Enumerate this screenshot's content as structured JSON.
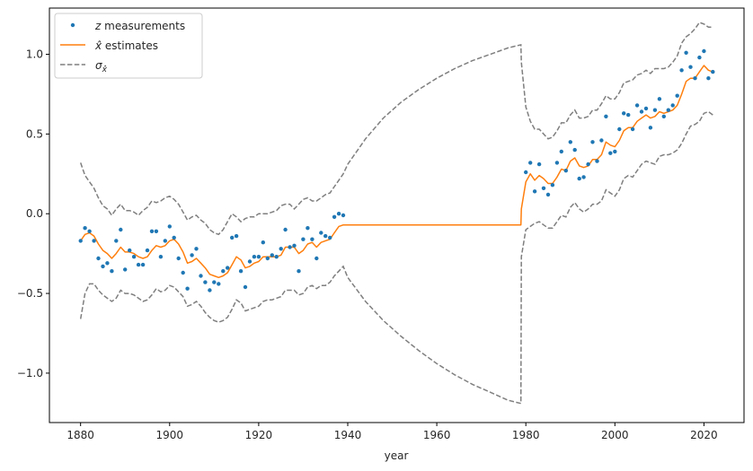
{
  "chart_data": {
    "type": "line",
    "xlabel": "year",
    "ylabel": "",
    "xlim": [
      1873,
      2029
    ],
    "ylim": [
      -1.31,
      1.29
    ],
    "xticks": [
      1880,
      1900,
      1920,
      1940,
      1960,
      1980,
      2000,
      2020
    ],
    "yticks": [
      -1.0,
      -0.5,
      0.0,
      0.5,
      1.0
    ],
    "xtick_labels": [
      "1880",
      "1900",
      "1920",
      "1940",
      "1960",
      "1980",
      "2000",
      "2020"
    ],
    "ytick_labels": [
      "−1.0",
      "−0.5",
      "0.0",
      "0.5",
      "1.0"
    ],
    "grid": false,
    "legend": {
      "placement": "top-left",
      "entries": [
        {
          "key": "measurements",
          "prefix": "z",
          "label": " measurements"
        },
        {
          "key": "estimates",
          "prefix": "x̂",
          "label": " estimates"
        },
        {
          "key": "sigma",
          "prefix": "σ",
          "sub": "x̂",
          "label": ""
        }
      ]
    },
    "colors": {
      "measurements": "#1f77b4",
      "estimates": "#ff7f0e",
      "sigma": "#7f7f7f"
    },
    "measurements": {
      "x": [
        1880,
        1881,
        1882,
        1883,
        1884,
        1885,
        1886,
        1887,
        1888,
        1889,
        1890,
        1891,
        1892,
        1893,
        1894,
        1895,
        1896,
        1897,
        1898,
        1899,
        1900,
        1901,
        1902,
        1903,
        1904,
        1905,
        1906,
        1907,
        1908,
        1909,
        1910,
        1911,
        1912,
        1913,
        1914,
        1915,
        1916,
        1917,
        1918,
        1919,
        1920,
        1921,
        1922,
        1923,
        1924,
        1925,
        1926,
        1927,
        1928,
        1929,
        1930,
        1931,
        1932,
        1933,
        1934,
        1935,
        1936,
        1937,
        1938,
        1939,
        1980,
        1981,
        1982,
        1983,
        1984,
        1985,
        1986,
        1987,
        1988,
        1989,
        1990,
        1991,
        1992,
        1993,
        1994,
        1995,
        1996,
        1997,
        1998,
        1999,
        2000,
        2001,
        2002,
        2003,
        2004,
        2005,
        2006,
        2007,
        2008,
        2009,
        2010,
        2011,
        2012,
        2013,
        2014,
        2015,
        2016,
        2017,
        2018,
        2019,
        2020,
        2021,
        2022
      ],
      "y": [
        -0.17,
        -0.09,
        -0.11,
        -0.17,
        -0.28,
        -0.33,
        -0.31,
        -0.36,
        -0.17,
        -0.1,
        -0.35,
        -0.23,
        -0.27,
        -0.32,
        -0.32,
        -0.23,
        -0.11,
        -0.11,
        -0.27,
        -0.17,
        -0.08,
        -0.15,
        -0.28,
        -0.37,
        -0.47,
        -0.26,
        -0.22,
        -0.39,
        -0.43,
        -0.48,
        -0.43,
        -0.44,
        -0.36,
        -0.34,
        -0.15,
        -0.14,
        -0.36,
        -0.46,
        -0.3,
        -0.27,
        -0.27,
        -0.18,
        -0.28,
        -0.26,
        -0.27,
        -0.22,
        -0.1,
        -0.21,
        -0.2,
        -0.36,
        -0.16,
        -0.09,
        -0.16,
        -0.28,
        -0.12,
        -0.14,
        -0.15,
        -0.02,
        0.0,
        -0.01,
        0.26,
        0.32,
        0.14,
        0.31,
        0.16,
        0.12,
        0.18,
        0.32,
        0.39,
        0.27,
        0.45,
        0.4,
        0.22,
        0.23,
        0.31,
        0.45,
        0.33,
        0.46,
        0.61,
        0.38,
        0.39,
        0.53,
        0.63,
        0.62,
        0.53,
        0.68,
        0.64,
        0.66,
        0.54,
        0.65,
        0.72,
        0.61,
        0.65,
        0.68,
        0.74,
        0.9,
        1.01,
        0.92,
        0.85,
        0.98,
        1.02,
        0.85,
        0.89
      ]
    },
    "estimates": {
      "x": [
        1880,
        1881,
        1882,
        1883,
        1884,
        1885,
        1886,
        1887,
        1888,
        1889,
        1890,
        1891,
        1892,
        1893,
        1894,
        1895,
        1896,
        1897,
        1898,
        1899,
        1900,
        1901,
        1902,
        1903,
        1904,
        1905,
        1906,
        1907,
        1908,
        1909,
        1910,
        1911,
        1912,
        1913,
        1914,
        1915,
        1916,
        1917,
        1918,
        1919,
        1920,
        1921,
        1922,
        1923,
        1924,
        1925,
        1926,
        1927,
        1928,
        1929,
        1930,
        1931,
        1932,
        1933,
        1934,
        1935,
        1936,
        1937,
        1938,
        1939,
        1978.9,
        1979,
        1980,
        1981,
        1982,
        1983,
        1984,
        1985,
        1986,
        1987,
        1988,
        1989,
        1990,
        1991,
        1992,
        1993,
        1994,
        1995,
        1996,
        1997,
        1998,
        1999,
        2000,
        2001,
        2002,
        2003,
        2004,
        2005,
        2006,
        2007,
        2008,
        2009,
        2010,
        2011,
        2012,
        2013,
        2014,
        2015,
        2016,
        2017,
        2018,
        2019,
        2020,
        2021,
        2022
      ],
      "y": [
        -0.17,
        -0.13,
        -0.12,
        -0.14,
        -0.19,
        -0.23,
        -0.25,
        -0.28,
        -0.25,
        -0.21,
        -0.24,
        -0.24,
        -0.25,
        -0.27,
        -0.28,
        -0.27,
        -0.23,
        -0.2,
        -0.21,
        -0.2,
        -0.17,
        -0.16,
        -0.19,
        -0.24,
        -0.31,
        -0.3,
        -0.28,
        -0.31,
        -0.34,
        -0.38,
        -0.39,
        -0.4,
        -0.39,
        -0.37,
        -0.32,
        -0.27,
        -0.29,
        -0.34,
        -0.33,
        -0.31,
        -0.3,
        -0.27,
        -0.27,
        -0.27,
        -0.27,
        -0.26,
        -0.21,
        -0.21,
        -0.21,
        -0.25,
        -0.23,
        -0.19,
        -0.18,
        -0.21,
        -0.18,
        -0.17,
        -0.16,
        -0.12,
        -0.08,
        -0.07,
        -0.07,
        0.03,
        0.2,
        0.25,
        0.21,
        0.24,
        0.22,
        0.19,
        0.19,
        0.23,
        0.28,
        0.27,
        0.33,
        0.35,
        0.3,
        0.29,
        0.3,
        0.34,
        0.34,
        0.37,
        0.45,
        0.43,
        0.42,
        0.46,
        0.52,
        0.54,
        0.54,
        0.58,
        0.6,
        0.62,
        0.6,
        0.61,
        0.64,
        0.63,
        0.64,
        0.65,
        0.68,
        0.75,
        0.83,
        0.85,
        0.85,
        0.89,
        0.93,
        0.9,
        0.89
      ]
    },
    "sigma_upper": {
      "x": [
        1880,
        1881,
        1882,
        1883,
        1884,
        1885,
        1886,
        1887,
        1888,
        1889,
        1890,
        1891,
        1892,
        1893,
        1894,
        1895,
        1896,
        1897,
        1898,
        1899,
        1900,
        1901,
        1902,
        1903,
        1904,
        1905,
        1906,
        1907,
        1908,
        1909,
        1910,
        1911,
        1912,
        1913,
        1914,
        1915,
        1916,
        1917,
        1918,
        1919,
        1920,
        1921,
        1922,
        1923,
        1924,
        1925,
        1926,
        1927,
        1928,
        1929,
        1930,
        1931,
        1932,
        1933,
        1934,
        1935,
        1936,
        1937,
        1938,
        1939,
        1940,
        1944,
        1948,
        1952,
        1956,
        1960,
        1964,
        1968,
        1972,
        1976,
        1978.9,
        1979,
        1980,
        1981,
        1982,
        1983,
        1984,
        1985,
        1986,
        1987,
        1988,
        1989,
        1990,
        1991,
        1992,
        1993,
        1994,
        1995,
        1996,
        1997,
        1998,
        1999,
        2000,
        2001,
        2002,
        2003,
        2004,
        2005,
        2006,
        2007,
        2008,
        2009,
        2010,
        2011,
        2012,
        2013,
        2014,
        2015,
        2016,
        2017,
        2018,
        2019,
        2020,
        2021,
        2022
      ],
      "y": [
        0.32,
        0.24,
        0.2,
        0.16,
        0.1,
        0.05,
        0.03,
        -0.01,
        0.03,
        0.06,
        0.02,
        0.02,
        0.01,
        -0.01,
        0.02,
        0.04,
        0.08,
        0.07,
        0.08,
        0.1,
        0.11,
        0.09,
        0.06,
        0.01,
        -0.04,
        -0.02,
        -0.01,
        -0.04,
        -0.06,
        -0.1,
        -0.12,
        -0.13,
        -0.1,
        -0.05,
        0.0,
        -0.02,
        -0.05,
        -0.03,
        -0.02,
        -0.02,
        0.0,
        0.0,
        0.0,
        0.01,
        0.02,
        0.05,
        0.06,
        0.06,
        0.03,
        0.06,
        0.09,
        0.1,
        0.08,
        0.08,
        0.1,
        0.12,
        0.13,
        0.17,
        0.21,
        0.25,
        0.31,
        0.47,
        0.6,
        0.7,
        0.78,
        0.85,
        0.91,
        0.96,
        1.0,
        1.04,
        1.06,
        0.95,
        0.67,
        0.58,
        0.53,
        0.53,
        0.5,
        0.47,
        0.48,
        0.52,
        0.57,
        0.57,
        0.62,
        0.65,
        0.6,
        0.6,
        0.61,
        0.65,
        0.65,
        0.69,
        0.74,
        0.72,
        0.72,
        0.76,
        0.82,
        0.83,
        0.84,
        0.87,
        0.88,
        0.9,
        0.88,
        0.91,
        0.91,
        0.91,
        0.92,
        0.95,
        0.99,
        1.07,
        1.11,
        1.13,
        1.16,
        1.2,
        1.19,
        1.17,
        1.17
      ]
    },
    "sigma_lower": {
      "x": [
        1880,
        1881,
        1882,
        1883,
        1884,
        1885,
        1886,
        1887,
        1888,
        1889,
        1890,
        1891,
        1892,
        1893,
        1894,
        1895,
        1896,
        1897,
        1898,
        1899,
        1900,
        1901,
        1902,
        1903,
        1904,
        1905,
        1906,
        1907,
        1908,
        1909,
        1910,
        1911,
        1912,
        1913,
        1914,
        1915,
        1916,
        1917,
        1918,
        1919,
        1920,
        1921,
        1922,
        1923,
        1924,
        1925,
        1926,
        1927,
        1928,
        1929,
        1930,
        1931,
        1932,
        1933,
        1934,
        1935,
        1936,
        1937,
        1938,
        1939,
        1940,
        1944,
        1948,
        1952,
        1956,
        1960,
        1964,
        1968,
        1972,
        1976,
        1978.9,
        1979,
        1980,
        1981,
        1982,
        1983,
        1984,
        1985,
        1986,
        1987,
        1988,
        1989,
        1990,
        1991,
        1992,
        1993,
        1994,
        1995,
        1996,
        1997,
        1998,
        1999,
        2000,
        2001,
        2002,
        2003,
        2004,
        2005,
        2006,
        2007,
        2008,
        2009,
        2010,
        2011,
        2012,
        2013,
        2014,
        2015,
        2016,
        2017,
        2018,
        2019,
        2020,
        2021,
        2022
      ],
      "y": [
        -0.66,
        -0.5,
        -0.44,
        -0.44,
        -0.48,
        -0.51,
        -0.53,
        -0.55,
        -0.53,
        -0.48,
        -0.5,
        -0.5,
        -0.51,
        -0.53,
        -0.55,
        -0.54,
        -0.51,
        -0.47,
        -0.49,
        -0.48,
        -0.45,
        -0.46,
        -0.49,
        -0.52,
        -0.58,
        -0.57,
        -0.55,
        -0.58,
        -0.62,
        -0.65,
        -0.67,
        -0.68,
        -0.67,
        -0.65,
        -0.6,
        -0.54,
        -0.56,
        -0.61,
        -0.6,
        -0.59,
        -0.58,
        -0.55,
        -0.54,
        -0.54,
        -0.53,
        -0.52,
        -0.48,
        -0.48,
        -0.48,
        -0.51,
        -0.5,
        -0.46,
        -0.45,
        -0.47,
        -0.45,
        -0.45,
        -0.43,
        -0.39,
        -0.36,
        -0.33,
        -0.4,
        -0.55,
        -0.67,
        -0.77,
        -0.86,
        -0.94,
        -1.01,
        -1.07,
        -1.12,
        -1.17,
        -1.19,
        -0.27,
        -0.1,
        -0.08,
        -0.06,
        -0.05,
        -0.07,
        -0.09,
        -0.09,
        -0.05,
        -0.01,
        -0.02,
        0.04,
        0.07,
        0.03,
        0.01,
        0.03,
        0.06,
        0.06,
        0.08,
        0.15,
        0.13,
        0.11,
        0.15,
        0.22,
        0.24,
        0.23,
        0.27,
        0.31,
        0.33,
        0.32,
        0.31,
        0.36,
        0.37,
        0.37,
        0.38,
        0.4,
        0.44,
        0.5,
        0.55,
        0.56,
        0.58,
        0.63,
        0.64,
        0.62
      ]
    }
  }
}
